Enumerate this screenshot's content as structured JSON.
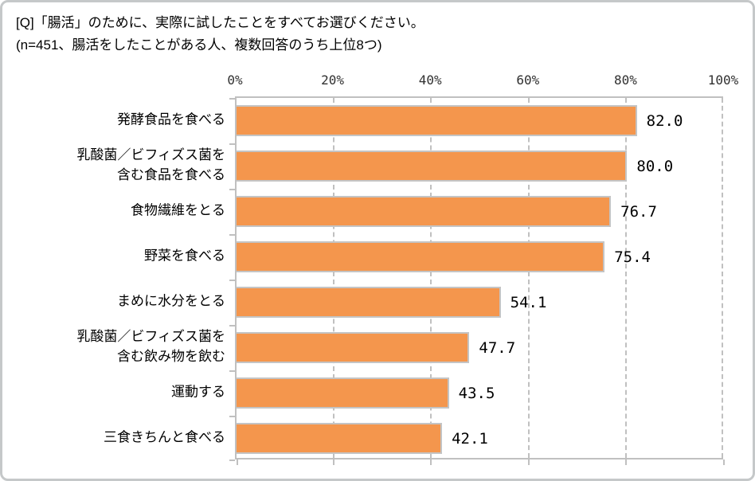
{
  "title": {
    "line1": "[Q]「腸活」のために、実際に試したことをすべてお選びください。",
    "line2": "(n=451、腸活をしたことがある人、複数回答のうち上位8つ)"
  },
  "chart_data": {
    "type": "bar",
    "orientation": "horizontal",
    "categories": [
      "発酵食品を食べる",
      "乳酸菌／ビフィズス菌を\n含む食品を食べる",
      "食物繊維をとる",
      "野菜を食べる",
      "まめに水分をとる",
      "乳酸菌／ビフィズス菌を\n含む飲み物を飲む",
      "運動する",
      "三食きちんと食べる"
    ],
    "values": [
      82.0,
      80.0,
      76.7,
      75.4,
      54.1,
      47.7,
      43.5,
      42.1
    ],
    "value_labels": [
      "82.0",
      "80.0",
      "76.7",
      "75.4",
      "54.1",
      "47.7",
      "43.5",
      "42.1"
    ],
    "xlabel": "",
    "ylabel": "",
    "xlim": [
      0,
      100
    ],
    "x_ticks": [
      "0%",
      "20%",
      "40%",
      "60%",
      "80%",
      "100%"
    ],
    "x_tick_values": [
      0,
      20,
      40,
      60,
      80,
      100
    ],
    "grid": "vertical-dashed",
    "legend": "none",
    "colors": {
      "bar_fill": "#f4964d",
      "bar_border": "#c4c4c4",
      "axis": "#c0c0c0",
      "text": "#000000",
      "frame_border": "#c5c8c9"
    }
  }
}
